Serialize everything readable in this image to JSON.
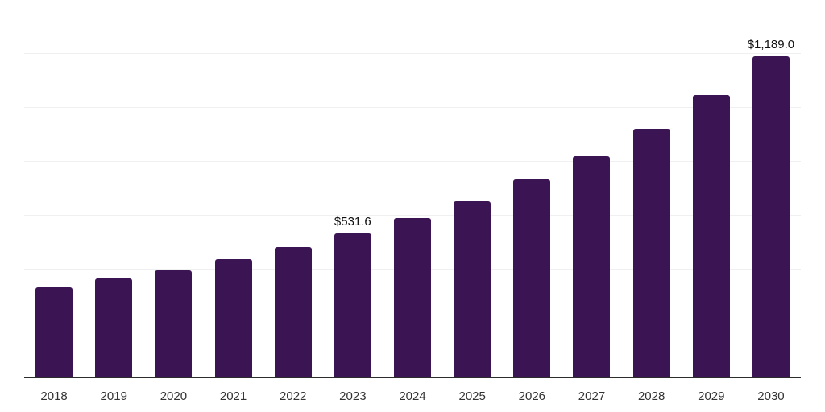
{
  "chart_data": {
    "type": "bar",
    "title": "",
    "categories": [
      "2018",
      "2019",
      "2020",
      "2021",
      "2022",
      "2023",
      "2024",
      "2025",
      "2026",
      "2027",
      "2028",
      "2029",
      "2030"
    ],
    "values": [
      331.6,
      364.4,
      395.0,
      436.1,
      480.9,
      531.6,
      588.4,
      651.2,
      731.8,
      818.4,
      920.0,
      1045.5,
      1189.0
    ],
    "data_labels": {
      "2023": "$531.6",
      "2030": "$1,189.0"
    },
    "xlabel": "",
    "ylabel": "",
    "ylim": [
      0,
      1400
    ],
    "gridline_step": 200,
    "grid": "horizontal",
    "legend_position": "none",
    "y_axis_labels_visible": false,
    "colors": {
      "bar": "#3a1453",
      "gridline": "#f0f0f0",
      "axis_line": "#2d2d2d",
      "tick_label": "#333333",
      "data_label": "#111111",
      "background": "#ffffff"
    }
  }
}
